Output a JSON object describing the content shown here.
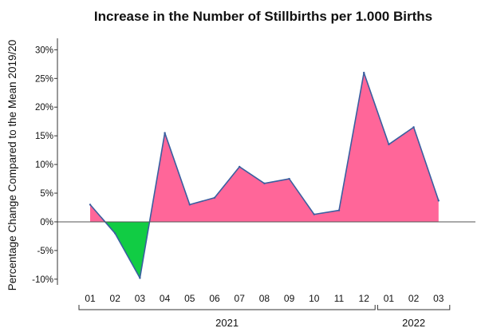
{
  "chart_data": {
    "type": "area",
    "title": "Increase in the Number of Stillbirths per 1.000 Births",
    "ylabel": "Percentage Change Compared to the Mean 2019/20",
    "xlabel": "",
    "categories": [
      "01",
      "02",
      "03",
      "04",
      "05",
      "06",
      "07",
      "08",
      "09",
      "10",
      "11",
      "12",
      "01",
      "02",
      "03"
    ],
    "groups": [
      {
        "label": "2021",
        "count": 12
      },
      {
        "label": "2022",
        "count": 3
      }
    ],
    "series": [
      {
        "values": [
          3.0,
          -2.0,
          -9.8,
          15.5,
          3.0,
          4.2,
          9.6,
          6.7,
          7.5,
          1.3,
          2.0,
          26.0,
          13.5,
          16.5,
          3.7
        ]
      }
    ],
    "ylim": [
      -11,
      32
    ],
    "yticks": [
      -10,
      -5,
      0,
      5,
      10,
      15,
      20,
      25,
      30
    ],
    "ytick_labels": [
      "-10%",
      "-5%",
      "0%",
      "5%",
      "10%",
      "15%",
      "20%",
      "25%",
      "30%"
    ],
    "colors": {
      "positive_fill": "#ff6699",
      "negative_fill": "#11cc44",
      "line": "#3a5fa0"
    },
    "grid": false,
    "legend": "none"
  }
}
